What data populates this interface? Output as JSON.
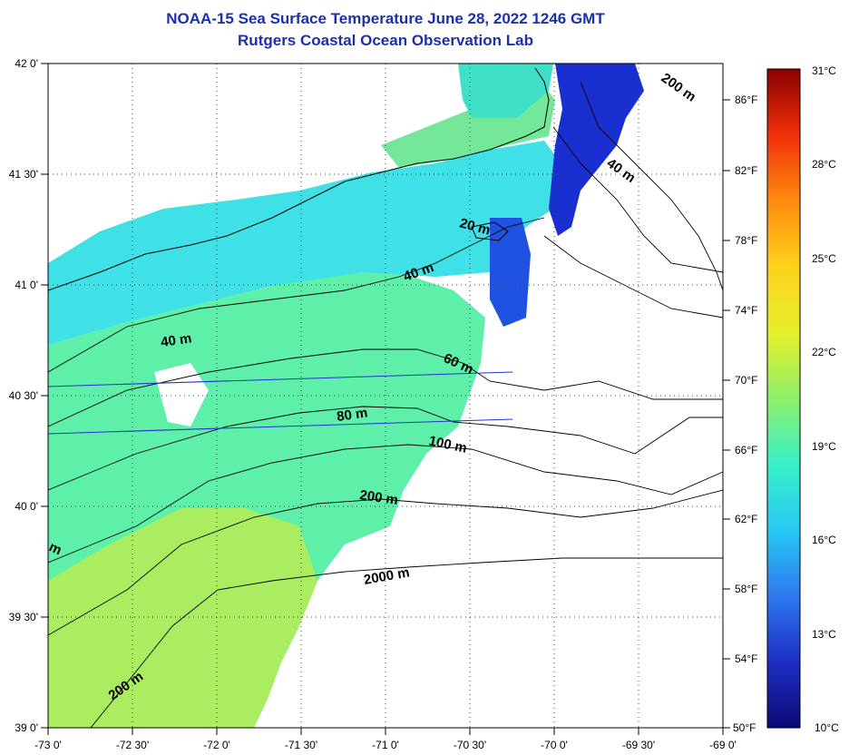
{
  "header": {
    "title": "NOAA-15 Sea Surface Temperature June 28, 2022 1246 GMT",
    "subtitle": "Rutgers Coastal Ocean Observation Lab"
  },
  "map": {
    "lon_labels": [
      "-73 0'",
      "-72 30'",
      "-72 0'",
      "-71 30'",
      "-71 0'",
      "-70 30'",
      "-70 0'",
      "-69 30'",
      "-69 0'"
    ],
    "lat_labels": [
      "42 0'",
      "41 30'",
      "41 0'",
      "40 30'",
      "40 0'",
      "39 30'",
      "39 0'"
    ],
    "fahrenheit_labels": [
      "86°F",
      "82°F",
      "78°F",
      "74°F",
      "70°F",
      "66°F",
      "62°F",
      "58°F",
      "54°F",
      "50°F"
    ],
    "contour_labels": [
      "200 m",
      "40 m",
      "20 m",
      "40 m",
      "40 m",
      "60 m",
      "80 m",
      "100 m",
      "200 m",
      "2000 m",
      "200 m",
      "m"
    ],
    "lon_range": [
      -73,
      -69
    ],
    "lat_range": [
      39,
      42
    ]
  },
  "colorbar": {
    "celsius_labels": [
      "31°C",
      "28°C",
      "25°C",
      "22°C",
      "19°C",
      "16°C",
      "13°C",
      "10°C"
    ],
    "range_c": [
      10,
      31
    ],
    "range_f": [
      50,
      88
    ],
    "colors": [
      "#0b0a78",
      "#1e2fc4",
      "#2e79f0",
      "#27c9f5",
      "#38f0c8",
      "#8ef06a",
      "#e6ef2a",
      "#ffd21c",
      "#ff8a10",
      "#f0300a",
      "#8b0000"
    ]
  }
}
